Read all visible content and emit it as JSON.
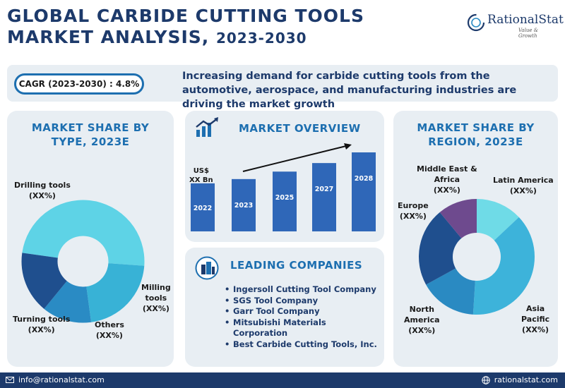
{
  "header": {
    "title_line1": "GLOBAL CARBIDE CUTTING TOOLS",
    "title_line2_main": "MARKET ANALYSIS, ",
    "title_line2_years": "2023-2030",
    "logo_name": "RationalStat",
    "logo_tagline": "Value & Growth"
  },
  "banner": {
    "cagr": "CAGR (2023-2030) : 4.8%",
    "text": "Increasing demand for carbide cutting tools from the automotive, aerospace, and manufacturing industries are driving the market growth"
  },
  "type_panel": {
    "title_line1": "MARKET SHARE BY",
    "title_line2": "TYPE, 2023E",
    "labels": {
      "drilling": [
        "Drilling tools",
        "(XX%)"
      ],
      "milling": [
        "Milling",
        "tools",
        "(XX%)"
      ],
      "others": [
        "Others",
        "(XX%)"
      ],
      "turning": [
        "Turning tools",
        "(XX%)"
      ]
    }
  },
  "overview_panel": {
    "title": "MARKET OVERVIEW",
    "unit_label_line1": "US$",
    "unit_label_line2": "XX Bn"
  },
  "companies_panel": {
    "title": "LEADING COMPANIES",
    "items": [
      "Ingersoll Cutting Tool Company",
      "SGS Tool Company",
      "Garr Tool Company",
      "Mitsubishi Materials Corporation",
      "Best Carbide Cutting Tools, Inc."
    ]
  },
  "region_panel": {
    "title_line1": "MARKET SHARE BY",
    "title_line2": "REGION, 2023E",
    "labels": {
      "mea": [
        "Middle East &",
        "Africa",
        "(XX%)"
      ],
      "latam": [
        "Latin America",
        "(XX%)"
      ],
      "europe": [
        "Europe",
        "(XX%)"
      ],
      "north_america": [
        "North",
        "America",
        "(XX%)"
      ],
      "apac": [
        "Asia",
        "Pacific",
        "(XX%)"
      ]
    }
  },
  "footer": {
    "email": "info@rationalstat.com",
    "website": "rationalstat.com"
  },
  "colors": {
    "navy": "#1d3a6b",
    "accent_blue": "#1d6fb0",
    "bar_blue": "#2f67b8",
    "panel_bg": "#e8eef3"
  },
  "chart_data": [
    {
      "type": "pie",
      "title": "MARKET SHARE BY TYPE, 2023E",
      "categories": [
        "Drilling tools",
        "Milling tools",
        "Others",
        "Turning tools"
      ],
      "values": [
        45,
        20,
        12,
        15
      ],
      "colors": [
        "#5ed3e6",
        "#38b2d6",
        "#2a8bc4",
        "#1f4f8e"
      ]
    },
    {
      "type": "bar",
      "title": "MARKET OVERVIEW",
      "categories": [
        "2022",
        "2023",
        "2025",
        "2027",
        "2028"
      ],
      "values": [
        45,
        49,
        56,
        64,
        74
      ],
      "ylabel": "US$ XX Bn",
      "trend_arrow": true
    },
    {
      "type": "pie",
      "title": "MARKET SHARE BY REGION, 2023E",
      "categories": [
        "Latin America",
        "Asia Pacific",
        "North America",
        "Europe",
        "Middle East & Africa"
      ],
      "values": [
        13,
        38,
        16,
        22,
        11
      ],
      "colors": [
        "#6fdbe7",
        "#3db3da",
        "#2a8ac2",
        "#1f4f8e",
        "#6e4a8e"
      ]
    }
  ]
}
